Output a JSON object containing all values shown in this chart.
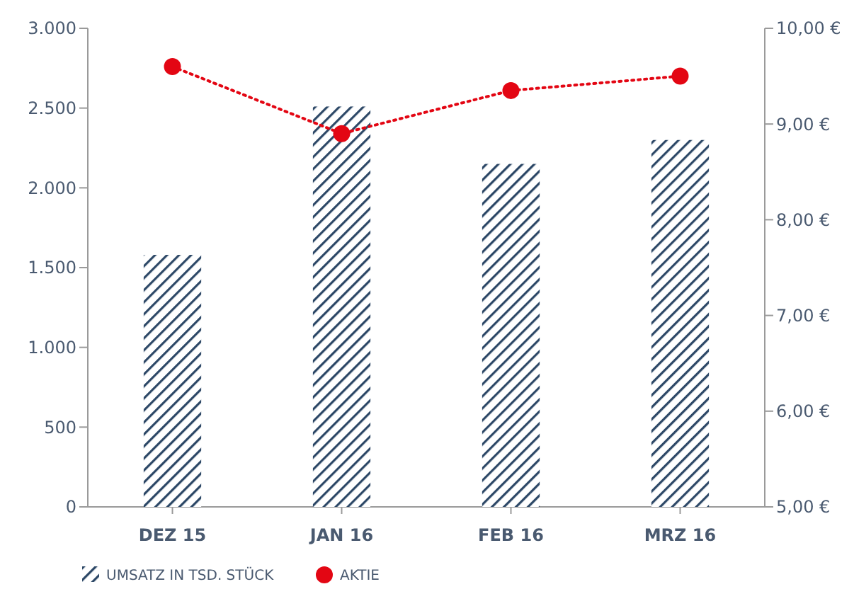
{
  "chart_data": {
    "type": "bar",
    "categories": [
      "DEZ 15",
      "JAN 16",
      "FEB 16",
      "MRZ 16"
    ],
    "series": [
      {
        "name": "UMSATZ IN TSD. STÜCK",
        "color": "#2c4766",
        "values": [
          1580,
          2510,
          2150,
          2300
        ]
      },
      {
        "name": "AKTIE",
        "type": "line",
        "axis": "y2",
        "color": "#e30613",
        "values": [
          9.6,
          8.9,
          9.35,
          9.5
        ],
        "marker": "circle",
        "line_style": "dotted"
      }
    ],
    "ylim": [
      0,
      3000
    ],
    "yticks": [
      {
        "value": 0,
        "label": "0"
      },
      {
        "value": 500,
        "label": "500"
      },
      {
        "value": 1000,
        "label": "1.000"
      },
      {
        "value": 1500,
        "label": "1.500"
      },
      {
        "value": 2000,
        "label": "2.000"
      },
      {
        "value": 2500,
        "label": "2.500"
      },
      {
        "value": 3000,
        "label": "3.000"
      }
    ],
    "y2lim": [
      5,
      10
    ],
    "y2ticks": [
      {
        "value": 5,
        "label": "5,00 €"
      },
      {
        "value": 6,
        "label": "6,00 €"
      },
      {
        "value": 7,
        "label": "7,00 €"
      },
      {
        "value": 8,
        "label": "8,00 €"
      },
      {
        "value": 9,
        "label": "9,00 €"
      },
      {
        "value": 10,
        "label": "10,00 €"
      }
    ],
    "grid": false,
    "legend": "bottom left"
  }
}
